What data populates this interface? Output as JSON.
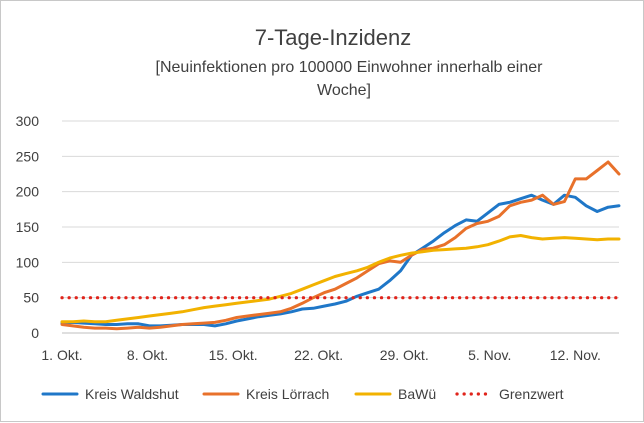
{
  "chart_data": {
    "type": "line",
    "title": "7-Tage-Inzidenz",
    "subtitle_line1": "[Neuinfektionen  pro 100000 Einwohner  innerhalb einer",
    "subtitle_line2": "Woche]",
    "ylim": [
      0,
      300
    ],
    "yticks": [
      "0",
      "50",
      "100",
      "150",
      "200",
      "250",
      "300"
    ],
    "x_tick_labels": [
      "1. Okt.",
      "8. Okt.",
      "15. Okt.",
      "22. Okt.",
      "29. Okt.",
      "5. Nov.",
      "12. Nov."
    ],
    "x_days": [
      1,
      48
    ],
    "legend_position": "bottom",
    "grid": true,
    "series": [
      {
        "name": "Kreis Waldshut",
        "color": "#1F77C8",
        "dash": false,
        "points": [
          [
            1,
            14
          ],
          [
            2,
            15
          ],
          [
            3,
            14
          ],
          [
            4,
            13
          ],
          [
            5,
            12
          ],
          [
            6,
            12
          ],
          [
            7,
            13
          ],
          [
            8,
            13
          ],
          [
            9,
            10
          ],
          [
            10,
            10
          ],
          [
            11,
            11
          ],
          [
            12,
            12
          ],
          [
            13,
            12
          ],
          [
            14,
            12
          ],
          [
            15,
            10
          ],
          [
            16,
            13
          ],
          [
            17,
            17
          ],
          [
            18,
            20
          ],
          [
            19,
            23
          ],
          [
            20,
            25
          ],
          [
            21,
            27
          ],
          [
            22,
            30
          ],
          [
            23,
            34
          ],
          [
            24,
            35
          ],
          [
            25,
            38
          ],
          [
            26,
            41
          ],
          [
            27,
            45
          ],
          [
            28,
            52
          ],
          [
            29,
            57
          ],
          [
            30,
            62
          ],
          [
            31,
            74
          ],
          [
            32,
            88
          ],
          [
            33,
            110
          ],
          [
            34,
            120
          ],
          [
            35,
            130
          ],
          [
            36,
            142
          ],
          [
            37,
            152
          ],
          [
            38,
            160
          ],
          [
            39,
            158
          ],
          [
            40,
            170
          ],
          [
            41,
            182
          ],
          [
            42,
            185
          ],
          [
            43,
            190
          ],
          [
            44,
            195
          ],
          [
            45,
            188
          ],
          [
            46,
            182
          ],
          [
            47,
            195
          ],
          [
            48,
            192
          ],
          [
            49,
            180
          ],
          [
            50,
            172
          ],
          [
            51,
            178
          ],
          [
            52,
            180
          ]
        ]
      },
      {
        "name": "Kreis Lörrach",
        "color": "#E8712B",
        "dash": false,
        "points": [
          [
            1,
            12
          ],
          [
            2,
            10
          ],
          [
            3,
            8
          ],
          [
            4,
            7
          ],
          [
            5,
            7
          ],
          [
            6,
            6
          ],
          [
            7,
            7
          ],
          [
            8,
            8
          ],
          [
            9,
            7
          ],
          [
            10,
            8
          ],
          [
            11,
            10
          ],
          [
            12,
            12
          ],
          [
            13,
            13
          ],
          [
            14,
            14
          ],
          [
            15,
            15
          ],
          [
            16,
            18
          ],
          [
            17,
            22
          ],
          [
            18,
            24
          ],
          [
            19,
            26
          ],
          [
            20,
            28
          ],
          [
            21,
            30
          ],
          [
            22,
            35
          ],
          [
            23,
            42
          ],
          [
            24,
            50
          ],
          [
            25,
            57
          ],
          [
            26,
            62
          ],
          [
            27,
            70
          ],
          [
            28,
            78
          ],
          [
            29,
            88
          ],
          [
            30,
            98
          ],
          [
            31,
            102
          ],
          [
            32,
            100
          ],
          [
            33,
            110
          ],
          [
            34,
            118
          ],
          [
            35,
            120
          ],
          [
            36,
            125
          ],
          [
            37,
            135
          ],
          [
            38,
            148
          ],
          [
            39,
            155
          ],
          [
            40,
            158
          ],
          [
            41,
            165
          ],
          [
            42,
            180
          ],
          [
            43,
            185
          ],
          [
            44,
            188
          ],
          [
            45,
            195
          ],
          [
            46,
            182
          ],
          [
            47,
            186
          ],
          [
            48,
            218
          ],
          [
            49,
            218
          ],
          [
            50,
            230
          ],
          [
            51,
            242
          ],
          [
            52,
            225
          ]
        ]
      },
      {
        "name": "BaWü",
        "color": "#F2B200",
        "dash": false,
        "points": [
          [
            1,
            16
          ],
          [
            2,
            16
          ],
          [
            3,
            17
          ],
          [
            4,
            16
          ],
          [
            5,
            16
          ],
          [
            6,
            18
          ],
          [
            7,
            20
          ],
          [
            8,
            22
          ],
          [
            9,
            24
          ],
          [
            10,
            26
          ],
          [
            11,
            28
          ],
          [
            12,
            30
          ],
          [
            13,
            33
          ],
          [
            14,
            36
          ],
          [
            15,
            38
          ],
          [
            16,
            40
          ],
          [
            17,
            42
          ],
          [
            18,
            44
          ],
          [
            19,
            46
          ],
          [
            20,
            48
          ],
          [
            21,
            52
          ],
          [
            22,
            56
          ],
          [
            23,
            62
          ],
          [
            24,
            68
          ],
          [
            25,
            74
          ],
          [
            26,
            80
          ],
          [
            27,
            84
          ],
          [
            28,
            88
          ],
          [
            29,
            93
          ],
          [
            30,
            100
          ],
          [
            31,
            106
          ],
          [
            32,
            110
          ],
          [
            33,
            113
          ],
          [
            34,
            115
          ],
          [
            35,
            117
          ],
          [
            36,
            118
          ],
          [
            37,
            119
          ],
          [
            38,
            120
          ],
          [
            39,
            122
          ],
          [
            40,
            125
          ],
          [
            41,
            130
          ],
          [
            42,
            136
          ],
          [
            43,
            138
          ],
          [
            44,
            135
          ],
          [
            45,
            133
          ],
          [
            46,
            134
          ],
          [
            47,
            135
          ],
          [
            48,
            134
          ],
          [
            49,
            133
          ],
          [
            50,
            132
          ],
          [
            51,
            133
          ],
          [
            52,
            133
          ]
        ]
      },
      {
        "name": "Grenzwert",
        "color": "#E0241B",
        "dash": true,
        "points": [
          [
            1,
            50
          ],
          [
            52,
            50
          ]
        ]
      }
    ]
  }
}
